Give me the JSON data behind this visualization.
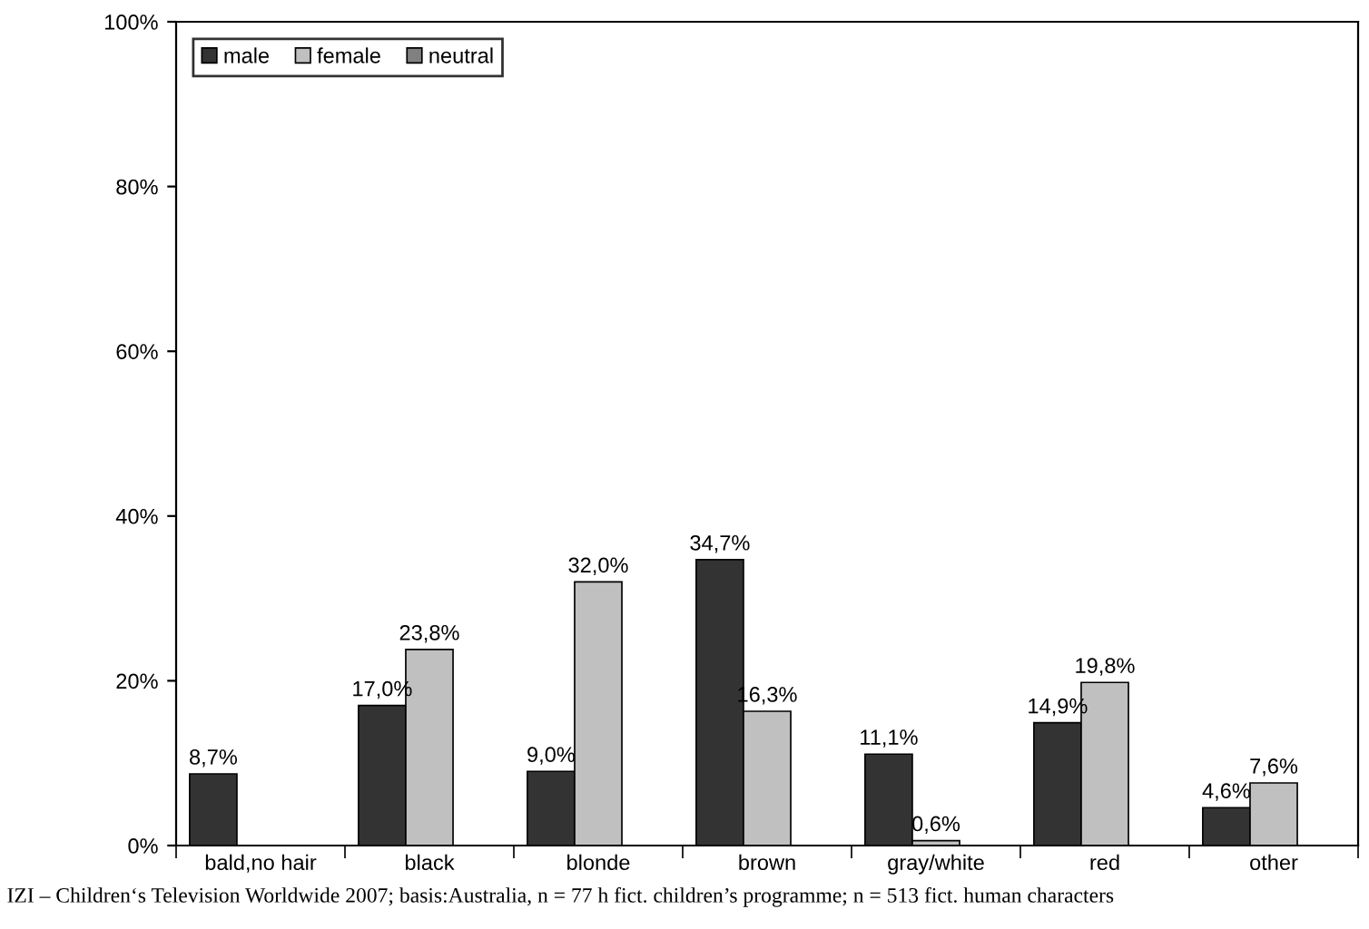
{
  "chart_data": {
    "type": "bar",
    "categories": [
      "bald,no hair",
      "black",
      "blonde",
      "brown",
      "gray/white",
      "red",
      "other"
    ],
    "series": [
      {
        "name": "male",
        "color": "#333333",
        "values": [
          8.7,
          17.0,
          9.0,
          34.7,
          11.1,
          14.9,
          4.6
        ],
        "value_labels": [
          "8,7%",
          "17,0%",
          "9,0%",
          "34,7%",
          "11,1%",
          "14,9%",
          "4,6%"
        ]
      },
      {
        "name": "female",
        "color": "#c0c0c0",
        "values": [
          null,
          23.8,
          32.0,
          16.3,
          0.6,
          19.8,
          7.6
        ],
        "value_labels": [
          null,
          "23,8%",
          "32,0%",
          "16,3%",
          "0,6%",
          "19,8%",
          "7,6%"
        ]
      },
      {
        "name": "neutral",
        "color": "#808080",
        "values": [
          null,
          null,
          null,
          null,
          null,
          null,
          null
        ]
      }
    ],
    "ylim": [
      0,
      100
    ],
    "yticks": [
      {
        "value": 0,
        "label": "0%"
      },
      {
        "value": 20,
        "label": "20%"
      },
      {
        "value": 40,
        "label": "40%"
      },
      {
        "value": 60,
        "label": "60%"
      },
      {
        "value": 80,
        "label": "80%"
      },
      {
        "value": 100,
        "label": "100%"
      }
    ],
    "legend": "top left",
    "grid": false,
    "annotations": [
      "IZI – Children‘s Television Worldwide 2007; basis:Australia, n = 77 h fict. children’s programme; n = 513 fict. human characters"
    ]
  }
}
